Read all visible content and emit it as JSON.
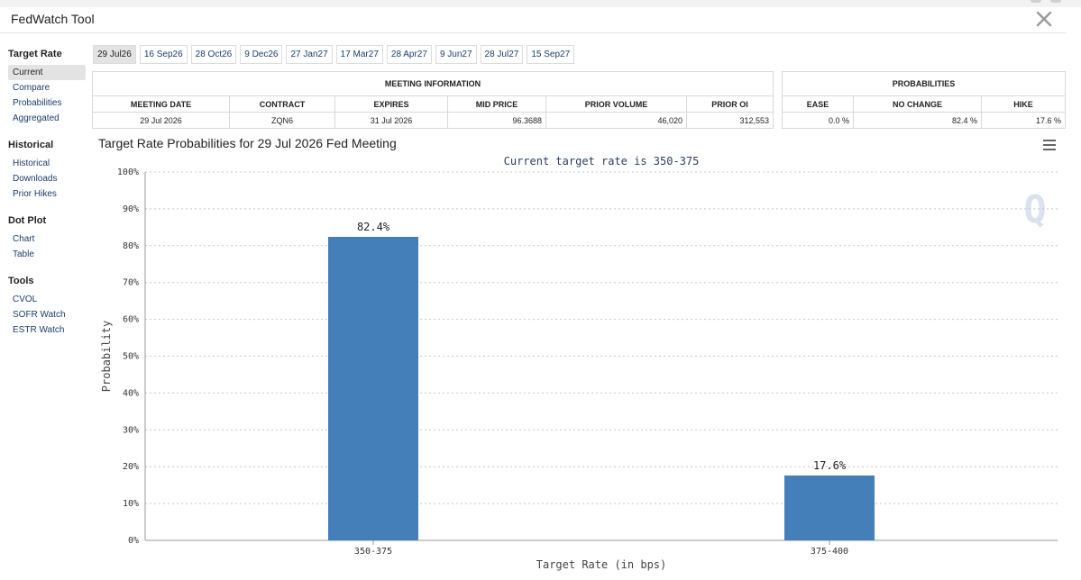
{
  "app": {
    "title": "FedWatch Tool"
  },
  "sidebar": {
    "groups": [
      {
        "heading": "Target Rate",
        "items": [
          "Current",
          "Compare",
          "Probabilities",
          "Aggregated"
        ]
      },
      {
        "heading": "Historical",
        "items": [
          "Historical",
          "Downloads",
          "Prior Hikes"
        ]
      },
      {
        "heading": "Dot Plot",
        "items": [
          "Chart",
          "Table"
        ]
      },
      {
        "heading": "Tools",
        "items": [
          "CVOL",
          "SOFR Watch",
          "ESTR Watch"
        ]
      }
    ]
  },
  "tabs": [
    "29 Jul26",
    "16 Sep26",
    "28 Oct26",
    "9 Dec26",
    "27 Jan27",
    "17 Mar27",
    "28 Apr27",
    "9 Jun27",
    "28 Jul27",
    "15 Sep27"
  ],
  "meeting_info": {
    "title": "MEETING INFORMATION",
    "headers": [
      "MEETING DATE",
      "CONTRACT",
      "EXPIRES",
      "MID PRICE",
      "PRIOR VOLUME",
      "PRIOR OI"
    ],
    "values": [
      "29 Jul 2026",
      "ZQN6",
      "31 Jul 2026",
      "96.3688",
      "46,020",
      "312,553"
    ]
  },
  "probabilities": {
    "title": "PROBABILITIES",
    "headers": [
      "EASE",
      "NO CHANGE",
      "HIKE"
    ],
    "values": [
      "0.0 %",
      "82.4 %",
      "17.6 %"
    ]
  },
  "chart_data": {
    "type": "bar",
    "title": "Target Rate Probabilities for 29 Jul 2026 Fed Meeting",
    "subtitle": "Current target rate is 350-375",
    "xlabel": "Target Rate (in bps)",
    "ylabel": "Probability",
    "categories": [
      "350-375",
      "375-400"
    ],
    "values": [
      82.4,
      17.6
    ],
    "data_labels": [
      "82.4%",
      "17.6%"
    ],
    "ylim": [
      0,
      100
    ],
    "yticks": [
      "0%",
      "10%",
      "20%",
      "30%",
      "40%",
      "50%",
      "60%",
      "70%",
      "80%",
      "90%",
      "100%"
    ],
    "grid": true,
    "bar_color": "#447fb9",
    "watermark": "Q"
  },
  "icons": {
    "x": "x-logo-icon",
    "menu": "hamburger-menu-icon"
  }
}
